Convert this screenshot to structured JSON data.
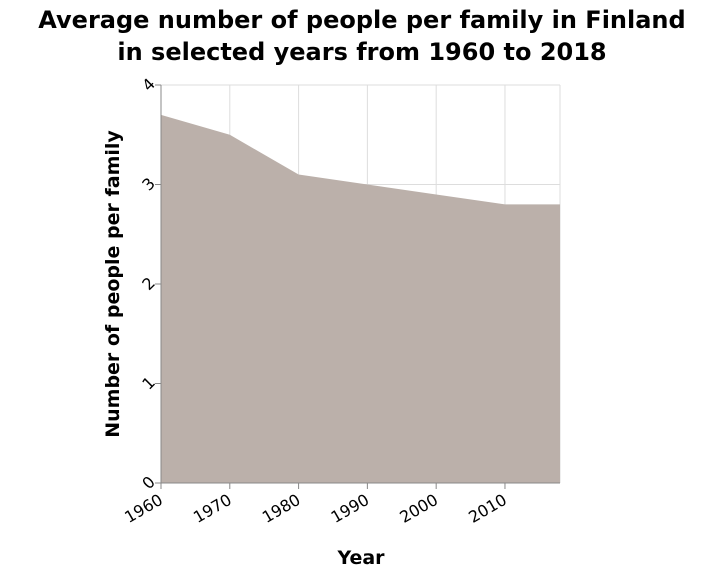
{
  "chart_data": {
    "type": "area",
    "title_lines": [
      "Average number of people per family in Finland",
      "in selected years from 1960 to 2018"
    ],
    "xlabel": "Year",
    "ylabel": "Number of people per family",
    "x": [
      1960,
      1970,
      1980,
      1990,
      2000,
      2010,
      2018
    ],
    "series": [
      {
        "values": [
          3.7,
          3.5,
          3.1,
          3.0,
          2.9,
          2.8,
          2.8
        ]
      }
    ],
    "xlim": [
      1960,
      2018
    ],
    "ylim": [
      0,
      4
    ],
    "x_ticks": [
      1960,
      1970,
      1980,
      1990,
      2000,
      2010
    ],
    "y_ticks": [
      0,
      1,
      2,
      3,
      4
    ],
    "grid": true,
    "area_color": "#bbb0aa"
  }
}
